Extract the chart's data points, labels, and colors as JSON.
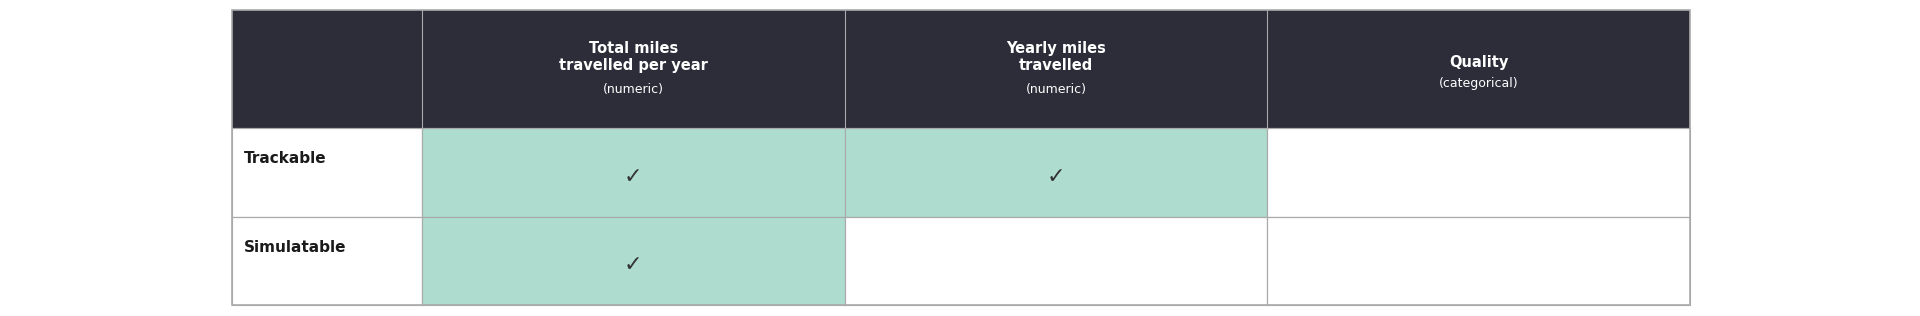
{
  "header_bg_color": "#2d2d3a",
  "header_text_color": "#ffffff",
  "row_label_color": "#1a1a1a",
  "cell_highlight_color": "#aeddd0",
  "cell_white_color": "#ffffff",
  "table_border_color": "#aaaaaa",
  "bg_color": "#ffffff",
  "columns": [
    "Total miles\ntravelled per year\n(numeric)",
    "Yearly miles\ntravelled\n(numeric)",
    "Quality\n(categorical)"
  ],
  "rows": [
    "Trackable",
    "Simulatable"
  ],
  "checks": [
    [
      true,
      true,
      false
    ],
    [
      true,
      false,
      false
    ]
  ],
  "fig_width": 19.2,
  "fig_height": 3.16
}
